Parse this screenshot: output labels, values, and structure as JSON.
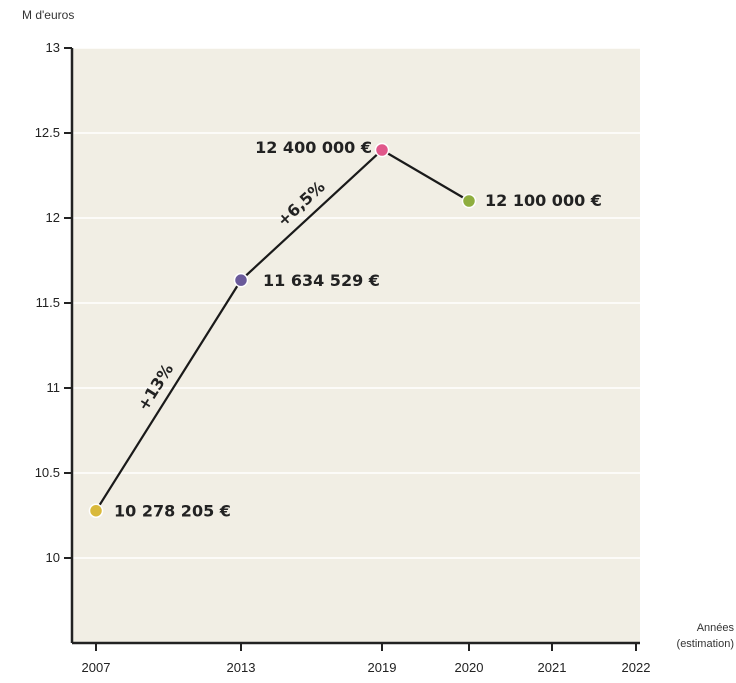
{
  "chart_data": {
    "type": "line",
    "unit_label": "M d'euros",
    "xlabel_line1": "Années",
    "xlabel_line2": "(estimation)",
    "ylim": [
      9.5,
      13
    ],
    "yticks": [
      10,
      10.5,
      11,
      11.5,
      12,
      12.5,
      13
    ],
    "ytick_labels": [
      "10",
      "10.5",
      "11",
      "11.5",
      "12",
      "12.5",
      "13"
    ],
    "xticks": [
      "2007",
      "2013",
      "2019",
      "2020",
      "2021",
      "2022"
    ],
    "grid": true,
    "points": [
      {
        "x": "2007",
        "y": 10.278205,
        "label": "10 278 205 €",
        "color": "#d9b93b"
      },
      {
        "x": "2013",
        "y": 11.634529,
        "label": "11 634 529 €",
        "color": "#6a5a9a"
      },
      {
        "x": "2019",
        "y": 12.4,
        "label": "12 400 000 €",
        "color": "#e0578a"
      },
      {
        "x": "2020",
        "y": 12.1,
        "label": "12 100 000 €",
        "color": "#8fae3f"
      }
    ],
    "annotations": [
      {
        "text": "+13%",
        "between": [
          "2007",
          "2013"
        ]
      },
      {
        "text": "+6,5%",
        "between": [
          "2013",
          "2019"
        ]
      }
    ],
    "colors": {
      "plot_background": "#f1eee4",
      "grid": "#ffffff",
      "axis": "#222222",
      "line": "#1a1a1a"
    }
  }
}
